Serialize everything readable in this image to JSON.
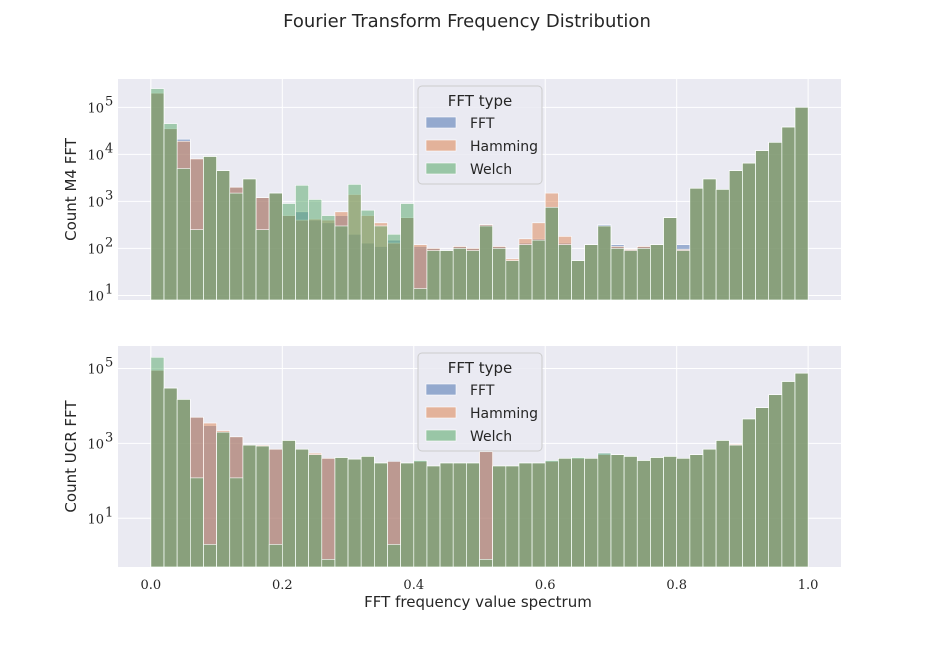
{
  "figure": {
    "title": "Fourier Transform Frequency Distribution",
    "xlabel": "FFT frequency value spectrum"
  },
  "colors": {
    "FFT": "#4c72b0",
    "Hamming": "#dd8452",
    "Welch": "#55a868",
    "axes_bg": "#eaeaf2",
    "grid": "#ffffff"
  },
  "chart_data": [
    {
      "type": "bar",
      "histogram": true,
      "ylabel": "Count M4 FFT",
      "yscale": "log",
      "ylim": [
        8,
        400000
      ],
      "xlim": [
        -0.05,
        1.05
      ],
      "xticks": [
        0.0,
        0.2,
        0.4,
        0.6,
        0.8,
        1.0
      ],
      "xtick_labels": [
        "0.0",
        "0.2",
        "0.4",
        "0.6",
        "0.8",
        "1.0"
      ],
      "yticks": [
        10,
        100,
        1000,
        10000,
        100000
      ],
      "ytick_labels": [
        "10",
        "10",
        "10",
        "10",
        "10"
      ],
      "ytick_exponents": [
        "1",
        "2",
        "3",
        "4",
        "5"
      ],
      "grid": true,
      "bins": 50,
      "bin_range": [
        0.0,
        1.0
      ],
      "legend": {
        "title": "FFT type",
        "placement": "top-center",
        "entries": [
          "FFT",
          "Hamming",
          "Welch"
        ]
      },
      "series": [
        {
          "name": "FFT",
          "values": [
            200000,
            35000,
            21000,
            8000,
            9000,
            4500,
            2000,
            3000,
            1200,
            1500,
            500,
            600,
            400,
            350,
            500,
            200,
            130,
            110,
            150,
            450,
            110,
            100,
            90,
            110,
            100,
            320,
            110,
            55,
            130,
            160,
            750,
            130,
            55,
            120,
            320,
            120,
            95,
            110,
            120,
            450,
            120,
            180,
            120,
            450,
            230,
            1000,
            200,
            190,
            600,
            320
          ]
        },
        {
          "name": "Hamming",
          "values": [
            200000,
            35000,
            19000,
            8000,
            9000,
            4500,
            2000,
            3000,
            1200,
            1500,
            500,
            400,
            420,
            400,
            600,
            1400,
            500,
            350,
            130,
            450,
            120,
            100,
            90,
            110,
            100,
            320,
            110,
            60,
            160,
            350,
            1500,
            180,
            55,
            120,
            300,
            110,
            95,
            110,
            120,
            450,
            95,
            150,
            120,
            420,
            280,
            1800,
            200,
            190,
            550,
            320
          ]
        },
        {
          "name": "Welch",
          "values": [
            250000,
            45000,
            5000,
            250,
            9000,
            4500,
            1500,
            3000,
            250,
            1500,
            900,
            2200,
            1100,
            500,
            300,
            2300,
            650,
            300,
            200,
            900,
            14,
            90,
            90,
            100,
            90,
            300,
            100,
            55,
            120,
            150,
            750,
            120,
            55,
            120,
            300,
            100,
            90,
            100,
            120,
            450,
            90,
            150,
            120,
            420,
            230,
            1000,
            200,
            190,
            500,
            320
          ]
        }
      ],
      "tail_values": [
        1900,
        3000,
        1800,
        4500,
        6500,
        12000,
        18000,
        38000,
        100000
      ],
      "tail_overlay_comment": ""
    },
    {
      "type": "bar",
      "histogram": true,
      "ylabel": "Count UCR FFT",
      "yscale": "log",
      "ylim": [
        0.5,
        400000
      ],
      "xlim": [
        -0.05,
        1.05
      ],
      "xticks": [
        0.0,
        0.2,
        0.4,
        0.6,
        0.8,
        1.0
      ],
      "xtick_labels": [
        "0.0",
        "0.2",
        "0.4",
        "0.6",
        "0.8",
        "1.0"
      ],
      "yticks": [
        10,
        1000,
        100000
      ],
      "ytick_labels": [
        "10",
        "10",
        "10"
      ],
      "ytick_exponents": [
        "1",
        "3",
        "5"
      ],
      "grid": true,
      "bins": 50,
      "bin_range": [
        0.0,
        1.0
      ],
      "legend": {
        "title": "FFT type",
        "placement": "top-center",
        "entries": [
          "FFT",
          "Hamming",
          "Welch"
        ]
      },
      "series": [
        {
          "name": "FFT",
          "values": [
            90000,
            30000,
            15000,
            5000,
            3000,
            2000,
            1500,
            900,
            850,
            700,
            1200,
            700,
            500,
            400,
            420,
            380,
            450,
            300,
            350,
            300,
            350,
            250,
            300,
            300,
            300,
            600,
            250,
            250,
            300,
            300,
            350,
            400,
            420,
            400,
            550,
            500,
            450,
            350,
            420,
            450,
            400,
            500,
            700,
            1200,
            900,
            1100,
            1000,
            1500,
            2000,
            3000
          ]
        },
        {
          "name": "Hamming",
          "values": [
            90000,
            30000,
            15000,
            5000,
            3500,
            2200,
            1500,
            900,
            900,
            700,
            1200,
            700,
            550,
            400,
            420,
            380,
            450,
            300,
            330,
            300,
            330,
            250,
            300,
            300,
            300,
            600,
            250,
            250,
            300,
            300,
            330,
            400,
            400,
            400,
            500,
            500,
            450,
            350,
            420,
            450,
            400,
            500,
            700,
            1200,
            950,
            1200,
            1100,
            1700,
            2300,
            3000
          ]
        },
        {
          "name": "Welch",
          "values": [
            200000,
            30000,
            15000,
            120,
            2,
            2000,
            120,
            900,
            850,
            2,
            1200,
            700,
            500,
            0.8,
            420,
            380,
            450,
            300,
            2,
            300,
            350,
            250,
            300,
            300,
            300,
            0.8,
            250,
            250,
            300,
            300,
            350,
            400,
            420,
            400,
            550,
            500,
            450,
            350,
            420,
            450,
            400,
            500,
            700,
            1200,
            900,
            1100,
            1000,
            1500,
            2000,
            3000
          ]
        }
      ],
      "tail_values": [
        4500,
        9000,
        20000,
        45000,
        75000
      ]
    }
  ]
}
